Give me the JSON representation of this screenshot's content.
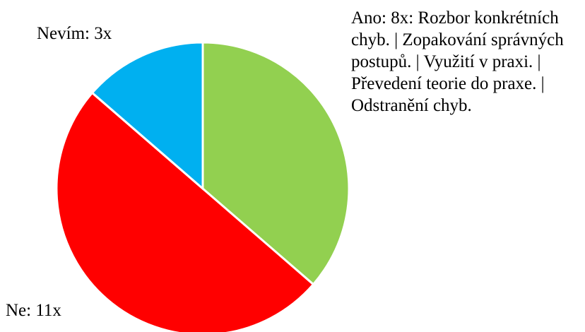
{
  "chart_data": {
    "type": "pie",
    "values": [
      8,
      11,
      3
    ],
    "value_labels": [
      "Ano: 8x: Rozbor konkrétních chyb. | Zopakování správných postupů. | Využití v praxi. | Převedení teorie do praxe. | Odstranění chyb.",
      "Ne: 11x",
      "Nevím: 3x"
    ],
    "colors": [
      "#92d050",
      "#ff0000",
      "#00b0f0"
    ]
  }
}
